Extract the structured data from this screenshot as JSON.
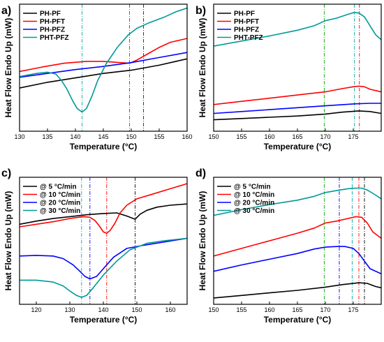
{
  "chart_data": [
    {
      "type": "line",
      "panel": "a)",
      "xlabel": "Temperature (°C)",
      "ylabel": "Heat Flow Endo Up (mW)",
      "xlim": [
        130,
        160
      ],
      "ylim": [
        0,
        100
      ],
      "xticks": [
        130,
        135,
        140,
        145,
        150,
        155,
        160
      ],
      "legend_position": "top-left",
      "grid": false,
      "vlines": [
        {
          "x": 141.2,
          "color": "#00aaaa",
          "dash": "dashdot"
        },
        {
          "x": 149.7,
          "color": "#ff0000",
          "dash": "dashdot"
        },
        {
          "x": 152.2,
          "color": "#0000ff",
          "dash": "dashdot"
        }
      ],
      "series": [
        {
          "name": "PH-PF",
          "color": "#000000",
          "x": [
            130,
            135,
            140,
            145,
            150,
            155,
            160
          ],
          "y": [
            34,
            38.5,
            42,
            45.5,
            48,
            52,
            57
          ]
        },
        {
          "name": "PH-PFT",
          "color": "#ff0000",
          "x": [
            130,
            134,
            138,
            142,
            145,
            148,
            149.7,
            151,
            153,
            155,
            157,
            160
          ],
          "y": [
            47,
            50.5,
            53.5,
            55,
            55,
            54,
            53.5,
            56,
            61,
            66,
            70,
            73
          ]
        },
        {
          "name": "PH-PFZ",
          "color": "#0000ff",
          "x": [
            130,
            135,
            140,
            145,
            150,
            155,
            160
          ],
          "y": [
            42.5,
            45.5,
            48.5,
            51,
            54,
            58,
            62
          ]
        },
        {
          "name": "PHT-PFZ",
          "color": "#009999",
          "x": [
            130,
            133,
            135,
            136.5,
            137.5,
            138.5,
            139.5,
            140.3,
            141.2,
            142,
            143,
            144,
            145.5,
            147.5,
            149.5,
            151,
            153,
            156,
            158,
            160
          ],
          "y": [
            43,
            45.5,
            46.5,
            45,
            40,
            33,
            24,
            18,
            15,
            18,
            28,
            40,
            53,
            66,
            76,
            81,
            85,
            90,
            94,
            97
          ]
        }
      ]
    },
    {
      "type": "line",
      "panel": "b)",
      "xlabel": "Temperature (°C)",
      "ylabel": "Heat Flow Endo Up (mW)",
      "xlim": [
        150,
        180
      ],
      "ylim": [
        0,
        100
      ],
      "xticks": [
        150,
        155,
        160,
        165,
        170,
        175
      ],
      "legend_position": "top-left",
      "grid": false,
      "vlines": [
        {
          "x": 169.8,
          "color": "#00aa00",
          "dash": "dashdot"
        },
        {
          "x": 175.2,
          "color": "#00aaaa",
          "dash": "dashdot"
        },
        {
          "x": 176.1,
          "color": "#ff0000",
          "dash": "dashdot"
        }
      ],
      "series": [
        {
          "name": "PH-PF",
          "color": "#000000",
          "x": [
            150,
            155,
            160,
            165,
            170,
            173,
            176,
            178,
            180
          ],
          "y": [
            9,
            10,
            11,
            12,
            13.5,
            15,
            16,
            15.5,
            14
          ]
        },
        {
          "name": "PH-PFT",
          "color": "#ff0000",
          "x": [
            150,
            155,
            160,
            163,
            165,
            170,
            173,
            175,
            176,
            177,
            178,
            180
          ],
          "y": [
            21,
            23.5,
            26,
            27.5,
            28.5,
            31,
            33.5,
            35,
            35.5,
            35,
            33,
            31
          ]
        },
        {
          "name": "PH-PFZ",
          "color": "#0000ff",
          "x": [
            150,
            155,
            160,
            165,
            170,
            175,
            178,
            180
          ],
          "y": [
            14,
            15.5,
            17,
            18.5,
            20,
            21.5,
            22,
            22
          ]
        },
        {
          "name": "PHT-PFZ",
          "color": "#009999",
          "x": [
            150,
            155,
            160,
            165,
            168,
            170,
            172,
            174,
            175.2,
            176,
            177,
            178,
            179,
            180
          ],
          "y": [
            67,
            71,
            75,
            79.5,
            83,
            87,
            89,
            92,
            93.5,
            93,
            90,
            83,
            76,
            72
          ]
        }
      ]
    },
    {
      "type": "line",
      "panel": "c)",
      "xlabel": "Temperature (°C)",
      "ylabel": "Heat Flow Endo Up (mW)",
      "xlim": [
        115,
        165
      ],
      "ylim": [
        0,
        100
      ],
      "xticks": [
        120,
        130,
        140,
        150,
        160
      ],
      "legend_position": "top-left",
      "grid": false,
      "vlines": [
        {
          "x": 133.5,
          "color": "#00aaaa",
          "dash": "dashdot"
        },
        {
          "x": 136.0,
          "color": "#0000ff",
          "dash": "dashdot"
        },
        {
          "x": 141.0,
          "color": "#ff0000",
          "dash": "dashdot"
        },
        {
          "x": 149.5,
          "color": "#000000",
          "dash": "dashdot"
        }
      ],
      "series": [
        {
          "name": "@ 5 °C/min",
          "color": "#000000",
          "x": [
            115,
            120,
            125,
            130,
            135,
            140,
            144,
            147,
            149.5,
            151,
            153,
            156,
            160,
            165
          ],
          "y": [
            63,
            65.5,
            67.5,
            69,
            70.5,
            71.5,
            72,
            69.5,
            67,
            71,
            74,
            76.5,
            78,
            79
          ]
        },
        {
          "name": "@ 10 °C/min",
          "color": "#ff0000",
          "x": [
            115,
            120,
            125,
            130,
            134,
            136,
            137.5,
            139,
            140,
            141,
            142,
            143.5,
            145,
            147,
            150,
            155,
            160,
            165
          ],
          "y": [
            61,
            63,
            65,
            67.5,
            69,
            68.5,
            66,
            61,
            57,
            56,
            58,
            64,
            72,
            78,
            83,
            87,
            91,
            95
          ]
        },
        {
          "name": "@ 20 °C/min",
          "color": "#0000ff",
          "x": [
            115,
            120,
            125,
            128,
            131,
            133,
            134.5,
            136,
            138,
            140,
            143,
            147,
            152,
            158,
            165
          ],
          "y": [
            38,
            38.5,
            38,
            36,
            31,
            26,
            22,
            20,
            22,
            28,
            37,
            44,
            46.5,
            49,
            52
          ]
        },
        {
          "name": "@ 30 °C/min",
          "color": "#009999",
          "x": [
            115,
            120,
            125,
            128,
            130,
            132,
            133.5,
            135,
            137,
            140,
            144,
            148,
            153,
            158,
            165
          ],
          "y": [
            19,
            19,
            17.5,
            14.5,
            10.5,
            7,
            5.5,
            7,
            13,
            23,
            34,
            43,
            48,
            50,
            52
          ]
        }
      ]
    },
    {
      "type": "line",
      "panel": "d)",
      "xlabel": "Temperature (°C)",
      "ylabel": "Heat Flow Endo Up (mW)",
      "xlim": [
        150,
        180
      ],
      "ylim": [
        0,
        100
      ],
      "xticks": [
        150,
        155,
        160,
        165,
        170,
        175
      ],
      "legend_position": "top-left",
      "grid": false,
      "vlines": [
        {
          "x": 169.8,
          "color": "#00aa00",
          "dash": "dashdot"
        },
        {
          "x": 172.5,
          "color": "#0000ff",
          "dash": "dashdot"
        },
        {
          "x": 174.8,
          "color": "#00aaaa",
          "dash": "dashdot"
        },
        {
          "x": 176.0,
          "color": "#ff0000",
          "dash": "dashdot"
        },
        {
          "x": 177.0,
          "color": "#000000",
          "dash": "dashdot"
        }
      ],
      "series": [
        {
          "name": "@ 5 °C/min",
          "color": "#000000",
          "x": [
            150,
            155,
            160,
            165,
            170,
            173,
            176,
            177.5,
            179,
            180
          ],
          "y": [
            5,
            7,
            9,
            11,
            13.5,
            15.5,
            17,
            16.5,
            14,
            13
          ]
        },
        {
          "name": "@ 10 °C/min",
          "color": "#ff0000",
          "x": [
            150,
            155,
            160,
            165,
            168,
            170,
            172,
            174,
            175.5,
            176.5,
            177.5,
            178.5,
            180
          ],
          "y": [
            38,
            44,
            50,
            56,
            60,
            64,
            65.5,
            67.5,
            69,
            68.5,
            64,
            57,
            52
          ]
        },
        {
          "name": "@ 20 °C/min",
          "color": "#0000ff",
          "x": [
            150,
            155,
            160,
            165,
            168,
            170,
            172,
            173.5,
            175,
            176,
            177,
            178,
            180
          ],
          "y": [
            26,
            31,
            35.5,
            40,
            43.5,
            45,
            45.5,
            45.5,
            44,
            40,
            34,
            28,
            24
          ]
        },
        {
          "name": "@ 30 °C/min",
          "color": "#009999",
          "x": [
            150,
            155,
            160,
            165,
            168,
            170,
            172,
            174,
            175.5,
            176.5,
            177.5,
            179,
            180
          ],
          "y": [
            70,
            74.5,
            78.5,
            82,
            85,
            88,
            89.5,
            91,
            91.5,
            91.5,
            90,
            86,
            83
          ]
        }
      ]
    }
  ]
}
